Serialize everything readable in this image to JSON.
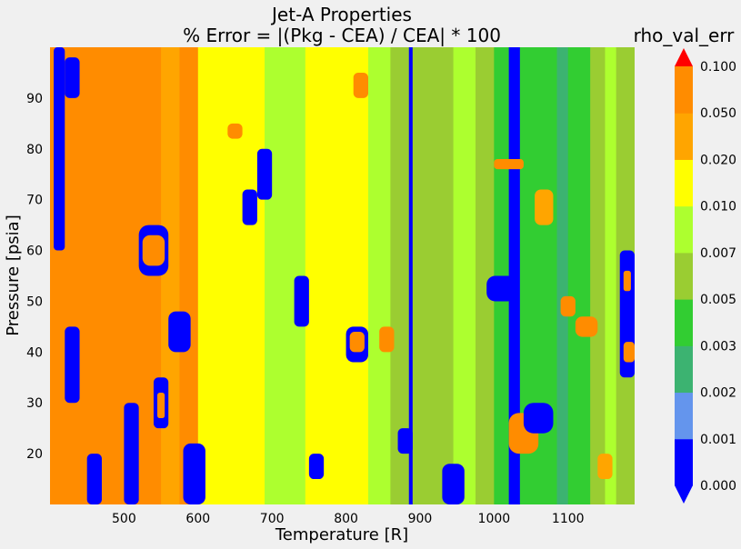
{
  "chart_data": {
    "type": "heatmap",
    "title": "Jet-A Properties",
    "subtitle": "% Error = |(Pkg - CEA) / CEA| * 100",
    "xlabel": "Temperature [R]",
    "ylabel": "Pressure [psia]",
    "xlim": [
      400,
      1190
    ],
    "ylim": [
      10,
      100
    ],
    "x_ticks": [
      "500",
      "600",
      "700",
      "800",
      "900",
      "1000",
      "1100"
    ],
    "y_ticks": [
      "20",
      "30",
      "40",
      "50",
      "60",
      "70",
      "80",
      "90"
    ],
    "colorbar": {
      "title": "rho_val_err",
      "levels": [
        "0.000",
        "0.001",
        "0.002",
        "0.003",
        "0.005",
        "0.007",
        "0.010",
        "0.020",
        "0.050",
        "0.100"
      ],
      "colors": [
        "#0000ff",
        "#6495ed",
        "#3cb371",
        "#32cd32",
        "#9acd32",
        "#adff2f",
        "#ffff00",
        "#ffa500",
        "#ff8c00",
        "#ff0000"
      ],
      "extend": "both"
    },
    "bands": [
      {
        "x": [
          400,
          420
        ],
        "level": "0.050-0.100"
      },
      {
        "x": [
          420,
          550
        ],
        "level": "0.050-0.100"
      },
      {
        "x": [
          550,
          575
        ],
        "level": "0.020-0.050"
      },
      {
        "x": [
          575,
          600
        ],
        "level": "0.050-0.100"
      },
      {
        "x": [
          600,
          690
        ],
        "level": "0.010-0.020"
      },
      {
        "x": [
          690,
          745
        ],
        "level": "0.007-0.010"
      },
      {
        "x": [
          745,
          830
        ],
        "level": "0.010-0.020"
      },
      {
        "x": [
          830,
          860
        ],
        "level": "0.007-0.010"
      },
      {
        "x": [
          860,
          885
        ],
        "level": "0.005-0.007"
      },
      {
        "x": [
          885,
          890
        ],
        "level": "0.000-0.001"
      },
      {
        "x": [
          890,
          945
        ],
        "level": "0.005-0.007"
      },
      {
        "x": [
          945,
          975
        ],
        "level": "0.007-0.010"
      },
      {
        "x": [
          975,
          1000
        ],
        "level": "0.005-0.007"
      },
      {
        "x": [
          1000,
          1020
        ],
        "level": "0.003-0.005"
      },
      {
        "x": [
          1020,
          1035
        ],
        "level": "0.000-0.001"
      },
      {
        "x": [
          1035,
          1085
        ],
        "level": "0.003-0.005"
      },
      {
        "x": [
          1085,
          1100
        ],
        "level": "0.002-0.003"
      },
      {
        "x": [
          1100,
          1130
        ],
        "level": "0.003-0.005"
      },
      {
        "x": [
          1130,
          1150
        ],
        "level": "0.005-0.007"
      },
      {
        "x": [
          1150,
          1165
        ],
        "level": "0.007-0.010"
      },
      {
        "x": [
          1165,
          1190
        ],
        "level": "0.005-0.007"
      }
    ],
    "patches": [
      {
        "x": [
          405,
          420
        ],
        "y": [
          60,
          100
        ],
        "level": "0.000-0.001"
      },
      {
        "x": [
          420,
          440
        ],
        "y": [
          90,
          98
        ],
        "level": "0.000-0.001"
      },
      {
        "x": [
          420,
          440
        ],
        "y": [
          30,
          45
        ],
        "level": "0.000-0.001"
      },
      {
        "x": [
          450,
          470
        ],
        "y": [
          10,
          20
        ],
        "level": "0.000-0.001"
      },
      {
        "x": [
          500,
          520
        ],
        "y": [
          10,
          30
        ],
        "level": "0.000-0.001"
      },
      {
        "x": [
          520,
          560
        ],
        "y": [
          55,
          65
        ],
        "level": "0.000-0.001"
      },
      {
        "x": [
          525,
          555
        ],
        "y": [
          57,
          63
        ],
        "level": "0.050-0.100"
      },
      {
        "x": [
          540,
          560
        ],
        "y": [
          25,
          35
        ],
        "level": "0.000-0.001"
      },
      {
        "x": [
          545,
          555
        ],
        "y": [
          27,
          32
        ],
        "level": "0.050-0.100"
      },
      {
        "x": [
          580,
          610
        ],
        "y": [
          10,
          22
        ],
        "level": "0.000-0.001"
      },
      {
        "x": [
          560,
          590
        ],
        "y": [
          40,
          48
        ],
        "level": "0.000-0.001"
      },
      {
        "x": [
          640,
          660
        ],
        "y": [
          82,
          85
        ],
        "level": "0.050-0.100"
      },
      {
        "x": [
          660,
          680
        ],
        "y": [
          65,
          72
        ],
        "level": "0.000-0.001"
      },
      {
        "x": [
          680,
          700
        ],
        "y": [
          70,
          80
        ],
        "level": "0.000-0.001"
      },
      {
        "x": [
          730,
          750
        ],
        "y": [
          45,
          55
        ],
        "level": "0.000-0.001"
      },
      {
        "x": [
          750,
          770
        ],
        "y": [
          15,
          20
        ],
        "level": "0.000-0.001"
      },
      {
        "x": [
          800,
          830
        ],
        "y": [
          38,
          45
        ],
        "level": "0.000-0.001"
      },
      {
        "x": [
          805,
          825
        ],
        "y": [
          40,
          44
        ],
        "level": "0.050-0.100"
      },
      {
        "x": [
          810,
          830
        ],
        "y": [
          90,
          95
        ],
        "level": "0.050-0.100"
      },
      {
        "x": [
          845,
          865
        ],
        "y": [
          40,
          45
        ],
        "level": "0.050-0.100"
      },
      {
        "x": [
          870,
          890
        ],
        "y": [
          20,
          25
        ],
        "level": "0.000-0.001"
      },
      {
        "x": [
          930,
          960
        ],
        "y": [
          10,
          18
        ],
        "level": "0.000-0.001"
      },
      {
        "x": [
          990,
          1030
        ],
        "y": [
          50,
          55
        ],
        "level": "0.000-0.001"
      },
      {
        "x": [
          1000,
          1040
        ],
        "y": [
          76,
          78
        ],
        "level": "0.050-0.100"
      },
      {
        "x": [
          1020,
          1060
        ],
        "y": [
          20,
          28
        ],
        "level": "0.050-0.100"
      },
      {
        "x": [
          1040,
          1080
        ],
        "y": [
          24,
          30
        ],
        "level": "0.000-0.001"
      },
      {
        "x": [
          1055,
          1080
        ],
        "y": [
          65,
          72
        ],
        "level": "0.020-0.050"
      },
      {
        "x": [
          1090,
          1110
        ],
        "y": [
          47,
          51
        ],
        "level": "0.050-0.100"
      },
      {
        "x": [
          1110,
          1140
        ],
        "y": [
          43,
          47
        ],
        "level": "0.050-0.100"
      },
      {
        "x": [
          1140,
          1160
        ],
        "y": [
          15,
          20
        ],
        "level": "0.020-0.050"
      },
      {
        "x": [
          1170,
          1190
        ],
        "y": [
          35,
          60
        ],
        "level": "0.000-0.001"
      },
      {
        "x": [
          1175,
          1190
        ],
        "y": [
          38,
          42
        ],
        "level": "0.050-0.100"
      },
      {
        "x": [
          1175,
          1185
        ],
        "y": [
          52,
          56
        ],
        "level": "0.050-0.100"
      }
    ],
    "grid": false
  }
}
